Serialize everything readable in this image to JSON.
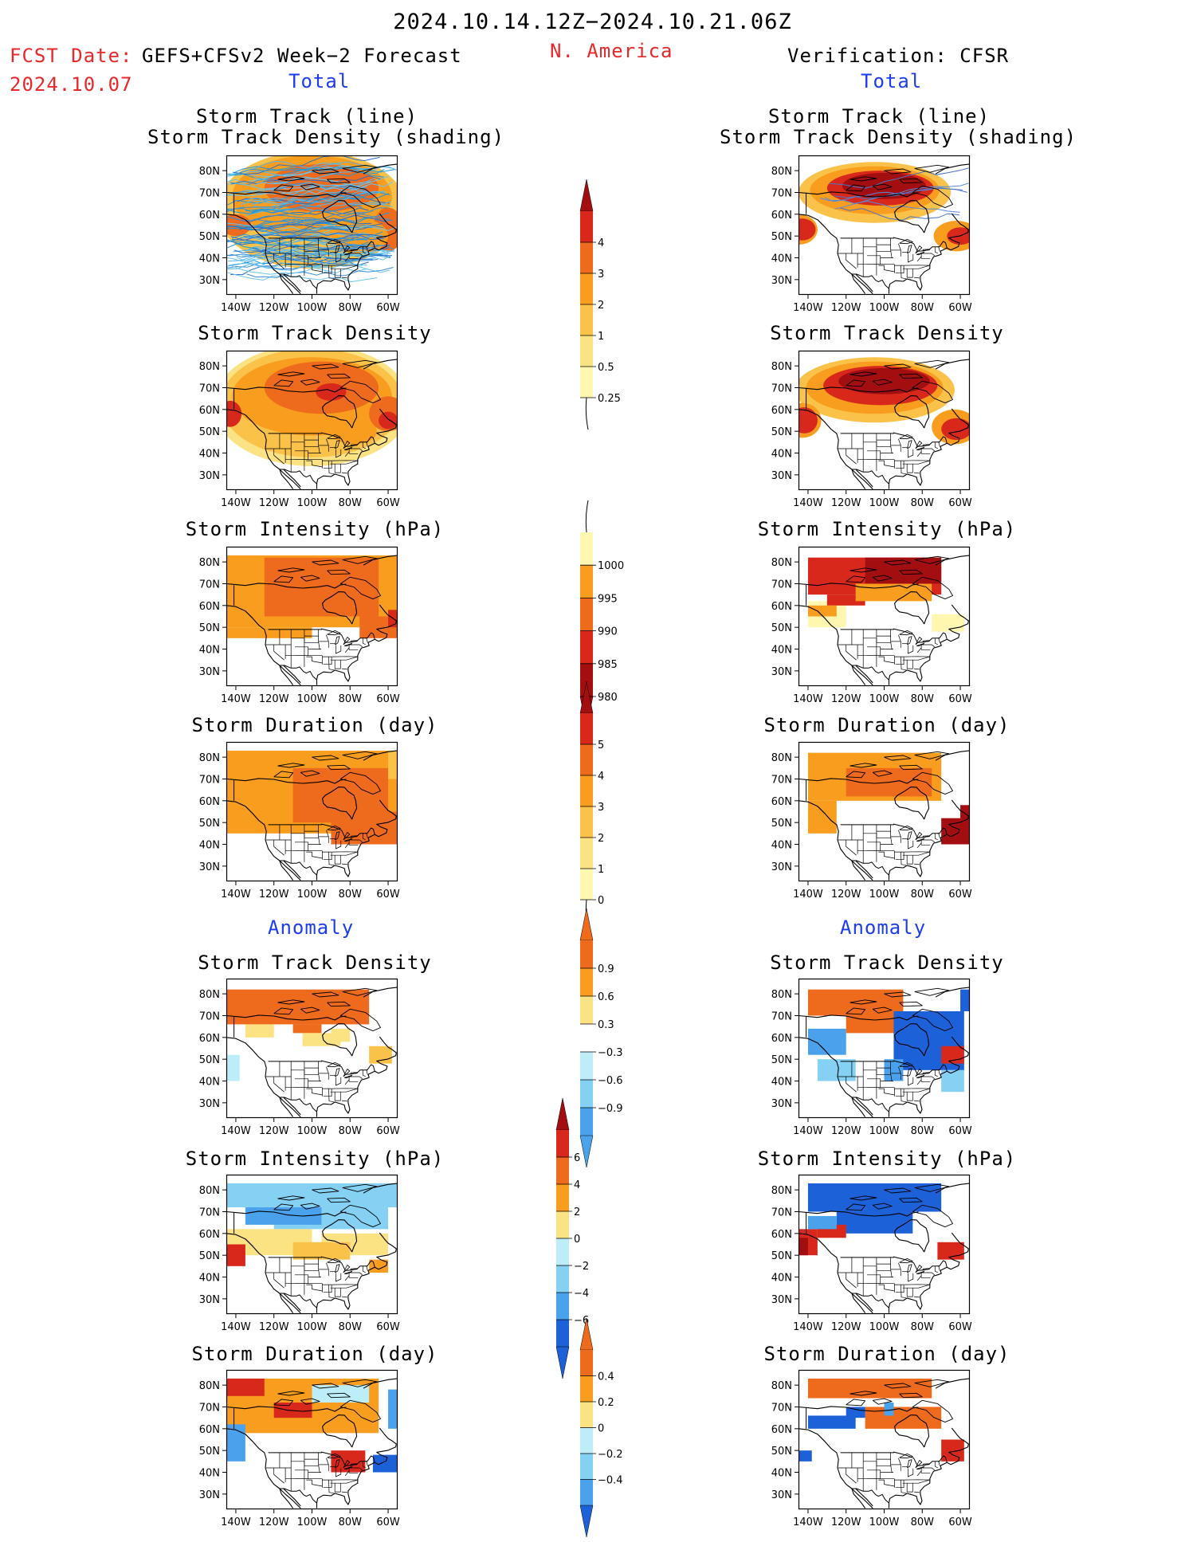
{
  "header": {
    "date_range": "2024.10.14.12Z−2024.10.21.06Z",
    "fcst_date_label": "FCST Date:",
    "fcst_model": "GEFS+CFSv2 Week−2 Forecast",
    "fcst_date": "2024.10.07",
    "region": "N. America",
    "verification": "Verification: CFSR"
  },
  "sections": {
    "total_left": "Total",
    "total_right": "Total",
    "anomaly_left": "Anomaly",
    "anomaly_right": "Anomaly"
  },
  "panel_titles": {
    "track_line": "Storm Track (line)",
    "track_shading": "Storm Track Density (shading)",
    "track_density": "Storm Track Density",
    "intensity": "Storm Intensity (hPa)",
    "duration": "Storm Duration (day)"
  },
  "map_axes": {
    "lat_ticks": [
      "80N",
      "70N",
      "60N",
      "50N",
      "40N",
      "30N"
    ],
    "lon_ticks": [
      "140W",
      "120W",
      "100W",
      "80W",
      "60W"
    ]
  },
  "colorbars": {
    "density_total": [
      "4",
      "3",
      "2",
      "1",
      "0.5",
      "0.25"
    ],
    "intensity_total": [
      "1000",
      "995",
      "990",
      "985",
      "980"
    ],
    "duration_total": [
      "5",
      "4",
      "3",
      "2",
      "1",
      "0"
    ],
    "density_anom": [
      "0.9",
      "0.6",
      "0.3",
      "−0.3",
      "−0.6",
      "−0.9"
    ],
    "intensity_anom": [
      "6",
      "4",
      "2",
      "0",
      "−2",
      "−4",
      "−6"
    ],
    "duration_anom": [
      "0.4",
      "0.2",
      "0",
      "−0.2",
      "−0.4"
    ]
  },
  "colors": {
    "pale_yellow": "#fff6b0",
    "light_yellow": "#fbe283",
    "gold": "#fbc24a",
    "orange": "#f89d1d",
    "dark_orange": "#ee6a1c",
    "red": "#d8281c",
    "dark_red": "#a30f10",
    "light_cyan": "#bcedf8",
    "sky": "#84d1f4",
    "light_blue": "#4aa2ec",
    "blue": "#1d61d8",
    "header_red": "#e8282a",
    "header_blue": "#1d3cf0"
  }
}
